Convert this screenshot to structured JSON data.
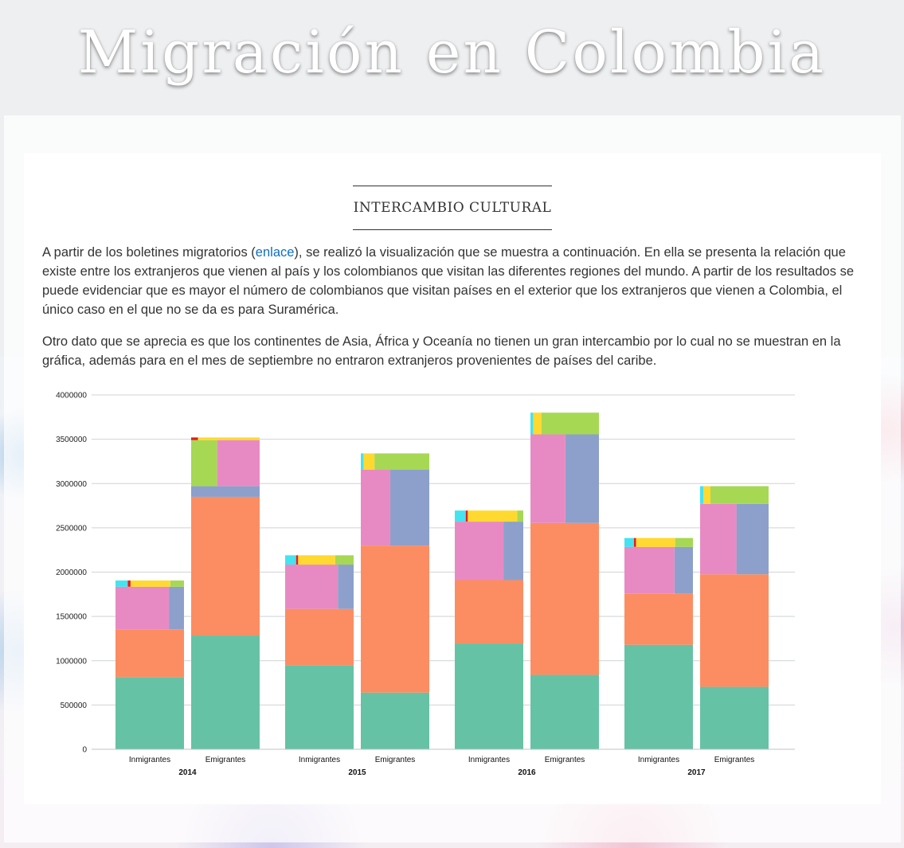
{
  "page": {
    "title": "Migración en Colombia"
  },
  "section": {
    "title": "Intercambio cultural",
    "p1_before": "A partir de los boletines migratorios (",
    "p1_link": "enlace",
    "p1_after": "), se realizó la visualización que se muestra a continuación. En ella se presenta la relación que existe entre los extranjeros que vienen al país y los colombianos que visitan las diferentes regiones del mundo. A partir de los resultados se puede evidenciar que es mayor el número de colombianos que visitan países en el exterior que los extranjeros que vienen a Colombia, el único caso en el que no se da es para Suramérica.",
    "p2": "Otro dato que se aprecia es que los continentes de Asia, África y Oceanía no tienen un gran intercambio por lo cual no se muestran en la gráfica, además para en el mes de septiembre no entraron extranjeros provenientes de países del caribe."
  },
  "chart_data": {
    "type": "bar",
    "stacked": true,
    "ylim": [
      0,
      4000000
    ],
    "yticks": [
      0,
      500000,
      1000000,
      1500000,
      2000000,
      2500000,
      3000000,
      3500000,
      4000000
    ],
    "grid": true,
    "groups": [
      {
        "year": "2014",
        "bars": [
          {
            "label": "Inmigrantes",
            "segments": [
              {
                "color": "#66c2a5",
                "value": 815000
              },
              {
                "color": "#fc8d62",
                "value": 540000
              },
              {
                "color": "#e78ac3",
                "value": 480000,
                "side": {
                  "color": "#8da0cb",
                  "share": 0.22
                }
              },
              {
                "color": "#ffd92f",
                "value": 70000,
                "lead": [
                  {
                    "color": "#44e3f0",
                    "share": 0.18
                  },
                  {
                    "color": "#e41a1c",
                    "share": 0.04
                  }
                ],
                "tail": {
                  "color": "#a6d854",
                  "share": 0.2
                }
              }
            ]
          },
          {
            "label": "Emigrantes",
            "segments": [
              {
                "color": "#66c2a5",
                "value": 1285000
              },
              {
                "color": "#fc8d62",
                "value": 1565000
              },
              {
                "color": "#8da0cb",
                "value": 120000
              },
              {
                "color": "#e78ac3",
                "value": 520000,
                "lead": [
                  {
                    "color": "#a6d854",
                    "share": 0.38
                  }
                ]
              },
              {
                "color": "#ffd92f",
                "value": 30000,
                "lead": [
                  {
                    "color": "#e41a1c",
                    "share": 0.1
                  }
                ]
              }
            ]
          }
        ]
      },
      {
        "year": "2015",
        "bars": [
          {
            "label": "Inmigrantes",
            "segments": [
              {
                "color": "#66c2a5",
                "value": 945000
              },
              {
                "color": "#fc8d62",
                "value": 640000
              },
              {
                "color": "#e78ac3",
                "value": 500000,
                "side": {
                  "color": "#8da0cb",
                  "share": 0.23
                }
              },
              {
                "color": "#ffd92f",
                "value": 105000,
                "lead": [
                  {
                    "color": "#44e3f0",
                    "share": 0.16
                  },
                  {
                    "color": "#e41a1c",
                    "share": 0.03
                  }
                ],
                "tail": {
                  "color": "#a6d854",
                  "share": 0.27
                }
              }
            ]
          },
          {
            "label": "Emigrantes",
            "segments": [
              {
                "color": "#66c2a5",
                "value": 640000
              },
              {
                "color": "#fc8d62",
                "value": 1660000
              },
              {
                "color": "#e78ac3",
                "value": 855000,
                "side": {
                  "color": "#8da0cb",
                  "share": 0.57
                }
              },
              {
                "color": "#a6d854",
                "value": 185000,
                "lead": [
                  {
                    "color": "#44e3f0",
                    "share": 0.04
                  },
                  {
                    "color": "#ffd92f",
                    "share": 0.16
                  }
                ]
              }
            ]
          }
        ]
      },
      {
        "year": "2016",
        "bars": [
          {
            "label": "Inmigrantes",
            "segments": [
              {
                "color": "#66c2a5",
                "value": 1195000
              },
              {
                "color": "#fc8d62",
                "value": 715000
              },
              {
                "color": "#e78ac3",
                "value": 660000,
                "side": {
                  "color": "#8da0cb",
                  "share": 0.29
                }
              },
              {
                "color": "#ffd92f",
                "value": 125000,
                "lead": [
                  {
                    "color": "#44e3f0",
                    "share": 0.16
                  },
                  {
                    "color": "#e41a1c",
                    "share": 0.03
                  }
                ],
                "tail": {
                  "color": "#a6d854",
                  "share": 0.09
                }
              }
            ]
          },
          {
            "label": "Emigrantes",
            "segments": [
              {
                "color": "#66c2a5",
                "value": 840000
              },
              {
                "color": "#fc8d62",
                "value": 1715000
              },
              {
                "color": "#e78ac3",
                "value": 1000000,
                "side": {
                  "color": "#8da0cb",
                  "share": 0.49
                }
              },
              {
                "color": "#a6d854",
                "value": 245000,
                "lead": [
                  {
                    "color": "#44e3f0",
                    "share": 0.04
                  },
                  {
                    "color": "#ffd92f",
                    "share": 0.12
                  }
                ]
              }
            ]
          }
        ]
      },
      {
        "year": "2017",
        "bars": [
          {
            "label": "Inmigrantes",
            "segments": [
              {
                "color": "#66c2a5",
                "value": 1180000
              },
              {
                "color": "#fc8d62",
                "value": 575000
              },
              {
                "color": "#e78ac3",
                "value": 530000,
                "side": {
                  "color": "#8da0cb",
                  "share": 0.27
                }
              },
              {
                "color": "#ffd92f",
                "value": 100000,
                "lead": [
                  {
                    "color": "#44e3f0",
                    "share": 0.14
                  },
                  {
                    "color": "#e41a1c",
                    "share": 0.03
                  }
                ],
                "tail": {
                  "color": "#a6d854",
                  "share": 0.26
                }
              }
            ]
          },
          {
            "label": "Emigrantes",
            "segments": [
              {
                "color": "#66c2a5",
                "value": 705000
              },
              {
                "color": "#fc8d62",
                "value": 1270000
              },
              {
                "color": "#e78ac3",
                "value": 795000,
                "side": {
                  "color": "#8da0cb",
                  "share": 0.47
                }
              },
              {
                "color": "#a6d854",
                "value": 200000,
                "lead": [
                  {
                    "color": "#44e3f0",
                    "share": 0.05
                  },
                  {
                    "color": "#ffd92f",
                    "share": 0.1
                  }
                ]
              }
            ]
          }
        ]
      }
    ]
  }
}
